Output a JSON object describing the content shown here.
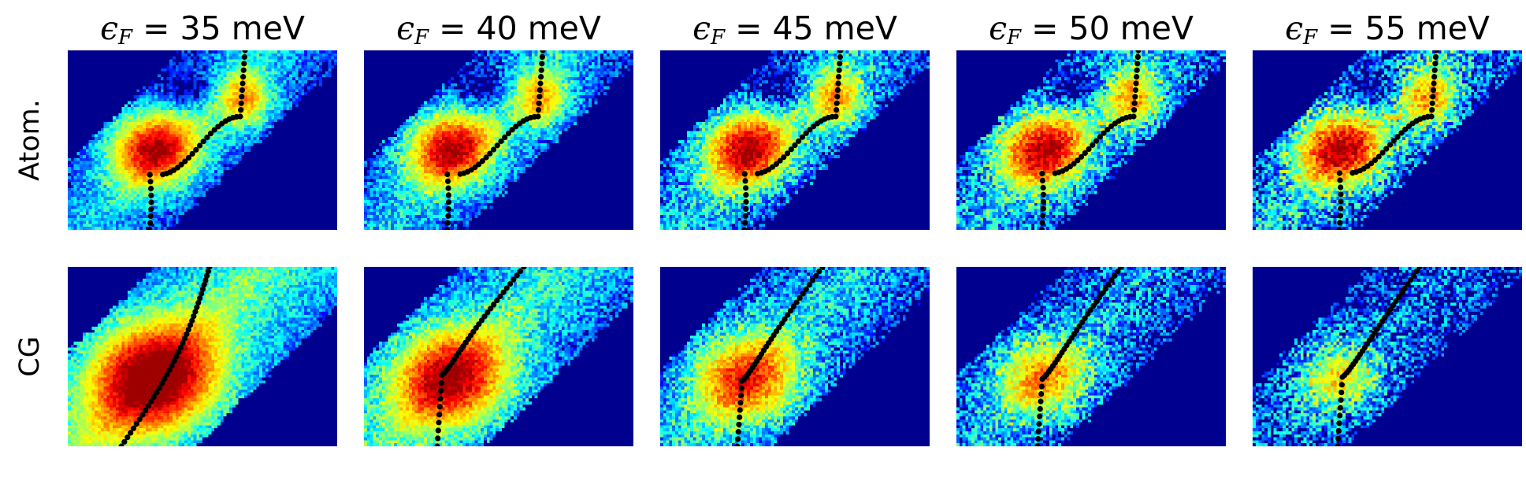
{
  "chart_data": {
    "type": "heatmap",
    "colormap": "jet",
    "columns": [
      {
        "label_symbol": "ϵ",
        "label_sub": "F",
        "label_text": " = 35 meV"
      },
      {
        "label_symbol": "ϵ",
        "label_sub": "F",
        "label_text": " = 40 meV"
      },
      {
        "label_symbol": "ϵ",
        "label_sub": "F",
        "label_text": " = 45 meV"
      },
      {
        "label_symbol": "ϵ",
        "label_sub": "F",
        "label_text": " = 50 meV"
      },
      {
        "label_symbol": "ϵ",
        "label_sub": "F",
        "label_text": " = 55 meV"
      }
    ],
    "rows": [
      {
        "label": "Atom."
      },
      {
        "label": "CG"
      }
    ],
    "axes_visible": false,
    "grid": false,
    "legend": "none",
    "marker_color": "#000000"
  }
}
